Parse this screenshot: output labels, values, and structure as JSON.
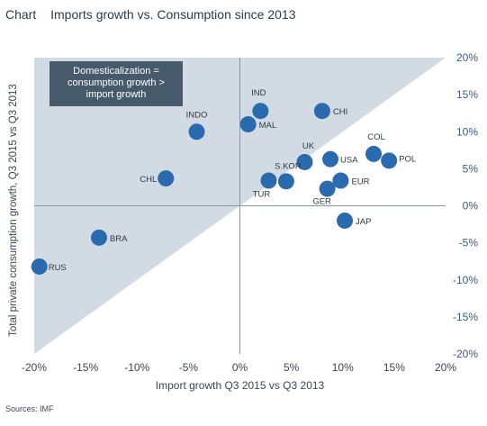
{
  "header": {
    "kicker": "Chart",
    "title": "Imports growth vs. Consumption since 2013"
  },
  "source": "Sources: IMF",
  "annotation": {
    "lines": [
      "Domesticalization =",
      "consumption growth >",
      "import growth"
    ]
  },
  "colors": {
    "region_fill": "#d2dbe3",
    "marker": "#2a6aaf",
    "annotation_box": "#465a6b",
    "axis_text": "#3a5a88",
    "label_text": "#2e3a46"
  },
  "chart_data": {
    "type": "scatter",
    "title": "Imports growth vs. Consumption since 2013",
    "xlabel": "Import growth  Q3 2015 vs Q3 2013",
    "ylabel": "Total private consumption growth, Q3 2015 vs Q3 2013",
    "xlim": [
      -20,
      20
    ],
    "ylim": [
      -20,
      20
    ],
    "xticks": [
      -20,
      -15,
      -10,
      -5,
      0,
      5,
      10,
      15,
      20
    ],
    "yticks": [
      20,
      15,
      10,
      5,
      0,
      -5,
      -10,
      -15,
      -20
    ],
    "xtick_labels": [
      "-20%",
      "-15%",
      "-10%",
      "-5%",
      "0%",
      "5%",
      "10%",
      "15%",
      "20%"
    ],
    "ytick_labels": [
      "20%",
      "15%",
      "10%",
      "5%",
      "0%",
      "-5%",
      "-10%",
      "-15%",
      "-20%"
    ],
    "shaded_region": "above y = x",
    "points": [
      {
        "label": "IND",
        "x": 2.0,
        "y": 12.8
      },
      {
        "label": "CHI",
        "x": 8.0,
        "y": 12.8
      },
      {
        "label": "INDO",
        "x": -4.2,
        "y": 10.0
      },
      {
        "label": "MAL",
        "x": 0.8,
        "y": 11.0
      },
      {
        "label": "CHL",
        "x": -7.2,
        "y": 3.7
      },
      {
        "label": "UK",
        "x": 6.3,
        "y": 5.9
      },
      {
        "label": "COL",
        "x": 13.0,
        "y": 7.0
      },
      {
        "label": "POL",
        "x": 14.5,
        "y": 6.1
      },
      {
        "label": "USA",
        "x": 8.8,
        "y": 6.3
      },
      {
        "label": "S.KOR",
        "x": 4.5,
        "y": 3.3
      },
      {
        "label": "TUR",
        "x": 2.8,
        "y": 3.4
      },
      {
        "label": "EUR",
        "x": 9.8,
        "y": 3.4
      },
      {
        "label": "GER",
        "x": 8.5,
        "y": 2.3
      },
      {
        "label": "JAP",
        "x": 10.2,
        "y": -2.0
      },
      {
        "label": "BRA",
        "x": -13.7,
        "y": -4.3
      },
      {
        "label": "RUS",
        "x": -19.5,
        "y": -8.2
      }
    ]
  }
}
